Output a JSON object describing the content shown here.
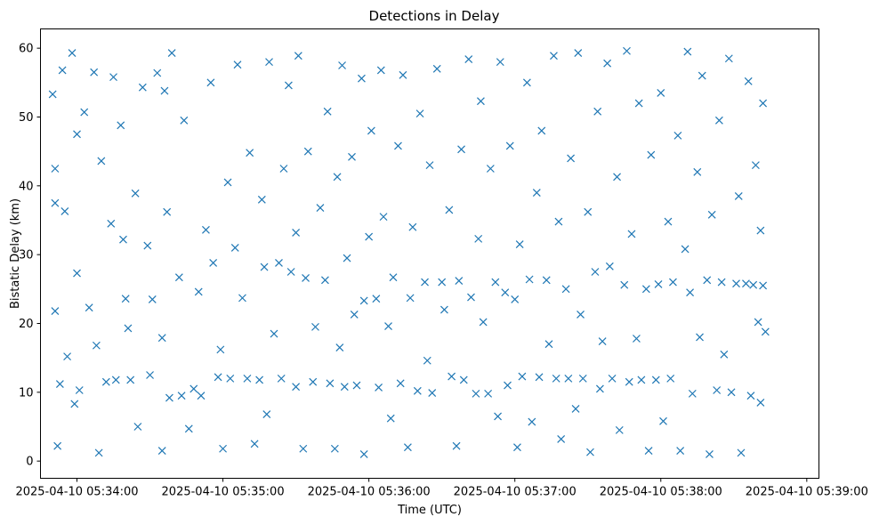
{
  "chart_data": {
    "type": "scatter",
    "title": "Detections in Delay",
    "xlabel": "Time (UTC)",
    "ylabel": "Bistatic Delay (km)",
    "marker": "x",
    "color": "#1f77b4",
    "grid": false,
    "legend": false,
    "xlim": [
      "2025-04-10 05:33:45",
      "2025-04-10 05:39:05"
    ],
    "ylim": [
      -2.5,
      62.8
    ],
    "x_ticks": [
      "2025-04-10 05:34:00",
      "2025-04-10 05:35:00",
      "2025-04-10 05:36:00",
      "2025-04-10 05:37:00",
      "2025-04-10 05:38:00",
      "2025-04-10 05:39:00"
    ],
    "y_ticks": [
      "0",
      "10",
      "20",
      "30",
      "40",
      "50",
      "60"
    ],
    "series": [
      {
        "points": [
          [
            "2025-04-10 05:33:50",
            53.3
          ],
          [
            "2025-04-10 05:33:51",
            42.5
          ],
          [
            "2025-04-10 05:33:51",
            37.5
          ],
          [
            "2025-04-10 05:33:51",
            21.8
          ],
          [
            "2025-04-10 05:33:52",
            2.2
          ],
          [
            "2025-04-10 05:33:53",
            11.2
          ],
          [
            "2025-04-10 05:33:54",
            56.8
          ],
          [
            "2025-04-10 05:33:55",
            36.3
          ],
          [
            "2025-04-10 05:33:56",
            15.2
          ],
          [
            "2025-04-10 05:33:58",
            59.3
          ],
          [
            "2025-04-10 05:33:59",
            8.3
          ],
          [
            "2025-04-10 05:34:00",
            27.3
          ],
          [
            "2025-04-10 05:34:00",
            47.5
          ],
          [
            "2025-04-10 05:34:01",
            10.3
          ],
          [
            "2025-04-10 05:34:03",
            50.7
          ],
          [
            "2025-04-10 05:34:05",
            22.3
          ],
          [
            "2025-04-10 05:34:07",
            56.5
          ],
          [
            "2025-04-10 05:34:08",
            16.8
          ],
          [
            "2025-04-10 05:34:09",
            1.2
          ],
          [
            "2025-04-10 05:34:10",
            43.6
          ],
          [
            "2025-04-10 05:34:12",
            11.5
          ],
          [
            "2025-04-10 05:34:14",
            34.5
          ],
          [
            "2025-04-10 05:34:15",
            55.8
          ],
          [
            "2025-04-10 05:34:16",
            11.8
          ],
          [
            "2025-04-10 05:34:18",
            48.8
          ],
          [
            "2025-04-10 05:34:19",
            32.2
          ],
          [
            "2025-04-10 05:34:20",
            23.6
          ],
          [
            "2025-04-10 05:34:21",
            19.3
          ],
          [
            "2025-04-10 05:34:22",
            11.8
          ],
          [
            "2025-04-10 05:34:24",
            38.9
          ],
          [
            "2025-04-10 05:34:25",
            5.0
          ],
          [
            "2025-04-10 05:34:27",
            54.3
          ],
          [
            "2025-04-10 05:34:29",
            31.3
          ],
          [
            "2025-04-10 05:34:30",
            12.5
          ],
          [
            "2025-04-10 05:34:31",
            23.5
          ],
          [
            "2025-04-10 05:34:33",
            56.4
          ],
          [
            "2025-04-10 05:34:35",
            17.9
          ],
          [
            "2025-04-10 05:34:35",
            1.5
          ],
          [
            "2025-04-10 05:34:36",
            53.8
          ],
          [
            "2025-04-10 05:34:37",
            36.2
          ],
          [
            "2025-04-10 05:34:38",
            9.2
          ],
          [
            "2025-04-10 05:34:39",
            59.3
          ],
          [
            "2025-04-10 05:34:42",
            26.7
          ],
          [
            "2025-04-10 05:34:43",
            9.5
          ],
          [
            "2025-04-10 05:34:44",
            49.5
          ],
          [
            "2025-04-10 05:34:46",
            4.7
          ],
          [
            "2025-04-10 05:34:48",
            10.5
          ],
          [
            "2025-04-10 05:34:50",
            24.6
          ],
          [
            "2025-04-10 05:34:51",
            9.5
          ],
          [
            "2025-04-10 05:34:53",
            33.6
          ],
          [
            "2025-04-10 05:34:55",
            55.0
          ],
          [
            "2025-04-10 05:34:56",
            28.8
          ],
          [
            "2025-04-10 05:34:58",
            12.2
          ],
          [
            "2025-04-10 05:34:59",
            16.2
          ],
          [
            "2025-04-10 05:35:00",
            1.8
          ],
          [
            "2025-04-10 05:35:02",
            40.5
          ],
          [
            "2025-04-10 05:35:03",
            12.0
          ],
          [
            "2025-04-10 05:35:05",
            31.0
          ],
          [
            "2025-04-10 05:35:06",
            57.6
          ],
          [
            "2025-04-10 05:35:08",
            23.7
          ],
          [
            "2025-04-10 05:35:10",
            12.0
          ],
          [
            "2025-04-10 05:35:11",
            44.8
          ],
          [
            "2025-04-10 05:35:13",
            2.5
          ],
          [
            "2025-04-10 05:35:15",
            11.8
          ],
          [
            "2025-04-10 05:35:16",
            38.0
          ],
          [
            "2025-04-10 05:35:17",
            28.2
          ],
          [
            "2025-04-10 05:35:18",
            6.8
          ],
          [
            "2025-04-10 05:35:19",
            58.0
          ],
          [
            "2025-04-10 05:35:21",
            18.5
          ],
          [
            "2025-04-10 05:35:23",
            28.8
          ],
          [
            "2025-04-10 05:35:24",
            12.0
          ],
          [
            "2025-04-10 05:35:25",
            42.5
          ],
          [
            "2025-04-10 05:35:27",
            54.6
          ],
          [
            "2025-04-10 05:35:28",
            27.5
          ],
          [
            "2025-04-10 05:35:30",
            10.8
          ],
          [
            "2025-04-10 05:35:30",
            33.2
          ],
          [
            "2025-04-10 05:35:31",
            58.9
          ],
          [
            "2025-04-10 05:35:33",
            1.8
          ],
          [
            "2025-04-10 05:35:34",
            26.6
          ],
          [
            "2025-04-10 05:35:35",
            45.0
          ],
          [
            "2025-04-10 05:35:37",
            11.5
          ],
          [
            "2025-04-10 05:35:38",
            19.5
          ],
          [
            "2025-04-10 05:35:40",
            36.8
          ],
          [
            "2025-04-10 05:35:42",
            26.3
          ],
          [
            "2025-04-10 05:35:43",
            50.8
          ],
          [
            "2025-04-10 05:35:44",
            11.3
          ],
          [
            "2025-04-10 05:35:46",
            1.8
          ],
          [
            "2025-04-10 05:35:47",
            41.3
          ],
          [
            "2025-04-10 05:35:48",
            16.5
          ],
          [
            "2025-04-10 05:35:49",
            57.5
          ],
          [
            "2025-04-10 05:35:50",
            10.8
          ],
          [
            "2025-04-10 05:35:51",
            29.5
          ],
          [
            "2025-04-10 05:35:53",
            44.2
          ],
          [
            "2025-04-10 05:35:54",
            21.3
          ],
          [
            "2025-04-10 05:35:55",
            11.0
          ],
          [
            "2025-04-10 05:35:57",
            55.6
          ],
          [
            "2025-04-10 05:35:58",
            23.3
          ],
          [
            "2025-04-10 05:35:58",
            1.0
          ],
          [
            "2025-04-10 05:36:00",
            32.6
          ],
          [
            "2025-04-10 05:36:01",
            48.0
          ],
          [
            "2025-04-10 05:36:03",
            23.6
          ],
          [
            "2025-04-10 05:36:04",
            10.7
          ],
          [
            "2025-04-10 05:36:05",
            56.8
          ],
          [
            "2025-04-10 05:36:06",
            35.5
          ],
          [
            "2025-04-10 05:36:08",
            19.6
          ],
          [
            "2025-04-10 05:36:09",
            6.2
          ],
          [
            "2025-04-10 05:36:10",
            26.7
          ],
          [
            "2025-04-10 05:36:12",
            45.8
          ],
          [
            "2025-04-10 05:36:13",
            11.3
          ],
          [
            "2025-04-10 05:36:14",
            56.1
          ],
          [
            "2025-04-10 05:36:16",
            2.0
          ],
          [
            "2025-04-10 05:36:17",
            23.7
          ],
          [
            "2025-04-10 05:36:18",
            34.0
          ],
          [
            "2025-04-10 05:36:20",
            10.2
          ],
          [
            "2025-04-10 05:36:21",
            50.5
          ],
          [
            "2025-04-10 05:36:23",
            26.0
          ],
          [
            "2025-04-10 05:36:24",
            14.6
          ],
          [
            "2025-04-10 05:36:25",
            43.0
          ],
          [
            "2025-04-10 05:36:26",
            9.9
          ],
          [
            "2025-04-10 05:36:28",
            57.0
          ],
          [
            "2025-04-10 05:36:30",
            26.0
          ],
          [
            "2025-04-10 05:36:31",
            22.0
          ],
          [
            "2025-04-10 05:36:33",
            36.5
          ],
          [
            "2025-04-10 05:36:34",
            12.3
          ],
          [
            "2025-04-10 05:36:36",
            2.2
          ],
          [
            "2025-04-10 05:36:37",
            26.2
          ],
          [
            "2025-04-10 05:36:38",
            45.3
          ],
          [
            "2025-04-10 05:36:39",
            11.8
          ],
          [
            "2025-04-10 05:36:41",
            58.4
          ],
          [
            "2025-04-10 05:36:42",
            23.8
          ],
          [
            "2025-04-10 05:36:44",
            9.8
          ],
          [
            "2025-04-10 05:36:45",
            32.3
          ],
          [
            "2025-04-10 05:36:46",
            52.3
          ],
          [
            "2025-04-10 05:36:47",
            20.2
          ],
          [
            "2025-04-10 05:36:49",
            9.8
          ],
          [
            "2025-04-10 05:36:50",
            42.5
          ],
          [
            "2025-04-10 05:36:52",
            26.0
          ],
          [
            "2025-04-10 05:36:53",
            6.5
          ],
          [
            "2025-04-10 05:36:54",
            58.0
          ],
          [
            "2025-04-10 05:36:56",
            24.5
          ],
          [
            "2025-04-10 05:36:57",
            11.0
          ],
          [
            "2025-04-10 05:36:58",
            45.8
          ],
          [
            "2025-04-10 05:37:00",
            23.5
          ],
          [
            "2025-04-10 05:37:01",
            2.0
          ],
          [
            "2025-04-10 05:37:02",
            31.5
          ],
          [
            "2025-04-10 05:37:03",
            12.3
          ],
          [
            "2025-04-10 05:37:05",
            55.0
          ],
          [
            "2025-04-10 05:37:06",
            26.4
          ],
          [
            "2025-04-10 05:37:07",
            5.7
          ],
          [
            "2025-04-10 05:37:09",
            39.0
          ],
          [
            "2025-04-10 05:37:10",
            12.2
          ],
          [
            "2025-04-10 05:37:11",
            48.0
          ],
          [
            "2025-04-10 05:37:13",
            26.3
          ],
          [
            "2025-04-10 05:37:14",
            17.0
          ],
          [
            "2025-04-10 05:37:16",
            58.9
          ],
          [
            "2025-04-10 05:37:17",
            12.0
          ],
          [
            "2025-04-10 05:37:18",
            34.8
          ],
          [
            "2025-04-10 05:37:19",
            3.2
          ],
          [
            "2025-04-10 05:37:21",
            25.0
          ],
          [
            "2025-04-10 05:37:22",
            12.0
          ],
          [
            "2025-04-10 05:37:23",
            44.0
          ],
          [
            "2025-04-10 05:37:25",
            7.6
          ],
          [
            "2025-04-10 05:37:26",
            59.3
          ],
          [
            "2025-04-10 05:37:27",
            21.3
          ],
          [
            "2025-04-10 05:37:28",
            12.0
          ],
          [
            "2025-04-10 05:37:30",
            36.2
          ],
          [
            "2025-04-10 05:37:31",
            1.3
          ],
          [
            "2025-04-10 05:37:33",
            27.5
          ],
          [
            "2025-04-10 05:37:34",
            50.8
          ],
          [
            "2025-04-10 05:37:35",
            10.5
          ],
          [
            "2025-04-10 05:37:36",
            17.4
          ],
          [
            "2025-04-10 05:37:38",
            57.8
          ],
          [
            "2025-04-10 05:37:39",
            28.3
          ],
          [
            "2025-04-10 05:37:40",
            12.0
          ],
          [
            "2025-04-10 05:37:42",
            41.3
          ],
          [
            "2025-04-10 05:37:43",
            4.5
          ],
          [
            "2025-04-10 05:37:45",
            25.6
          ],
          [
            "2025-04-10 05:37:46",
            59.6
          ],
          [
            "2025-04-10 05:37:47",
            11.5
          ],
          [
            "2025-04-10 05:37:48",
            33.0
          ],
          [
            "2025-04-10 05:37:50",
            17.8
          ],
          [
            "2025-04-10 05:37:51",
            52.0
          ],
          [
            "2025-04-10 05:37:52",
            11.8
          ],
          [
            "2025-04-10 05:37:54",
            25.0
          ],
          [
            "2025-04-10 05:37:55",
            1.5
          ],
          [
            "2025-04-10 05:37:56",
            44.5
          ],
          [
            "2025-04-10 05:37:58",
            11.8
          ],
          [
            "2025-04-10 05:37:59",
            25.7
          ],
          [
            "2025-04-10 05:38:00",
            53.5
          ],
          [
            "2025-04-10 05:38:01",
            5.8
          ],
          [
            "2025-04-10 05:38:03",
            34.8
          ],
          [
            "2025-04-10 05:38:04",
            12.0
          ],
          [
            "2025-04-10 05:38:05",
            26.0
          ],
          [
            "2025-04-10 05:38:07",
            47.3
          ],
          [
            "2025-04-10 05:38:08",
            1.5
          ],
          [
            "2025-04-10 05:38:10",
            30.8
          ],
          [
            "2025-04-10 05:38:11",
            59.5
          ],
          [
            "2025-04-10 05:38:12",
            24.5
          ],
          [
            "2025-04-10 05:38:13",
            9.8
          ],
          [
            "2025-04-10 05:38:15",
            42.0
          ],
          [
            "2025-04-10 05:38:16",
            18.0
          ],
          [
            "2025-04-10 05:38:17",
            56.0
          ],
          [
            "2025-04-10 05:38:19",
            26.3
          ],
          [
            "2025-04-10 05:38:20",
            1.0
          ],
          [
            "2025-04-10 05:38:21",
            35.8
          ],
          [
            "2025-04-10 05:38:23",
            10.3
          ],
          [
            "2025-04-10 05:38:24",
            49.5
          ],
          [
            "2025-04-10 05:38:25",
            26.0
          ],
          [
            "2025-04-10 05:38:26",
            15.5
          ],
          [
            "2025-04-10 05:38:28",
            58.5
          ],
          [
            "2025-04-10 05:38:29",
            10.0
          ],
          [
            "2025-04-10 05:38:31",
            25.8
          ],
          [
            "2025-04-10 05:38:32",
            38.5
          ],
          [
            "2025-04-10 05:38:33",
            1.2
          ],
          [
            "2025-04-10 05:38:35",
            25.8
          ],
          [
            "2025-04-10 05:38:36",
            55.2
          ],
          [
            "2025-04-10 05:38:37",
            9.5
          ],
          [
            "2025-04-10 05:38:38",
            25.6
          ],
          [
            "2025-04-10 05:38:39",
            43.0
          ],
          [
            "2025-04-10 05:38:40",
            20.2
          ],
          [
            "2025-04-10 05:38:41",
            8.5
          ],
          [
            "2025-04-10 05:38:41",
            33.5
          ],
          [
            "2025-04-10 05:38:42",
            52.0
          ],
          [
            "2025-04-10 05:38:42",
            25.5
          ],
          [
            "2025-04-10 05:38:43",
            18.8
          ]
        ]
      }
    ]
  }
}
